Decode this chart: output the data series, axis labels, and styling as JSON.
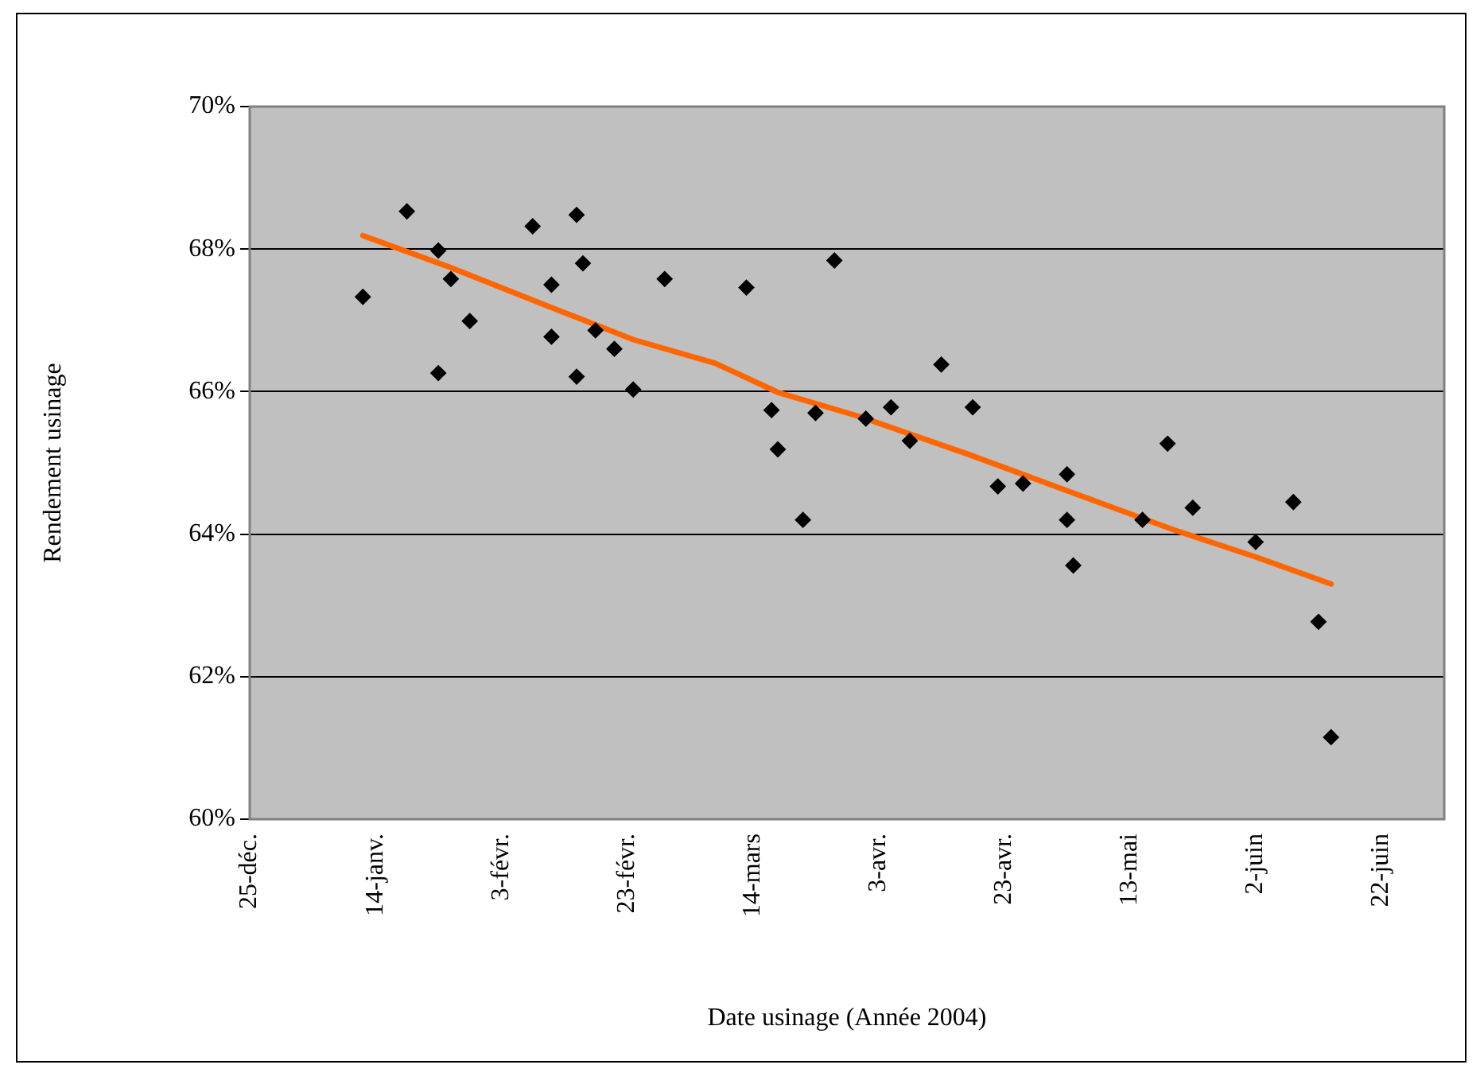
{
  "chart_data": {
    "type": "scatter",
    "xlabel": "Date usinage (Année 2004)",
    "ylabel": "Rendement usinage",
    "xlim": [
      "2003-12-25",
      "2004-07-02"
    ],
    "xticks": [
      {
        "value": "2003-12-25",
        "label": "25-déc."
      },
      {
        "value": "2004-01-14",
        "label": "14-janv."
      },
      {
        "value": "2004-02-03",
        "label": "3-févr."
      },
      {
        "value": "2004-02-23",
        "label": "23-févr."
      },
      {
        "value": "2004-03-14",
        "label": "14-mars"
      },
      {
        "value": "2004-04-03",
        "label": "3-avr."
      },
      {
        "value": "2004-04-23",
        "label": "23-avr."
      },
      {
        "value": "2004-05-13",
        "label": "13-mai"
      },
      {
        "value": "2004-06-02",
        "label": "2-juin"
      },
      {
        "value": "2004-06-22",
        "label": "22-juin"
      }
    ],
    "ylim": [
      60,
      70
    ],
    "yticks": [
      {
        "value": 60,
        "label": "60%"
      },
      {
        "value": 62,
        "label": "62%"
      },
      {
        "value": 64,
        "label": "64%"
      },
      {
        "value": 66,
        "label": "66%"
      },
      {
        "value": 68,
        "label": "68%"
      },
      {
        "value": 70,
        "label": "70%"
      }
    ],
    "grid": "y",
    "legend": false,
    "series": [
      {
        "color": "#000000",
        "marker": "diamond",
        "x": [
          "2004-01-12",
          "2004-01-19",
          "2004-01-24",
          "2004-01-26",
          "2004-01-24",
          "2004-01-29",
          "2004-02-08",
          "2004-02-15",
          "2004-02-11",
          "2004-02-16",
          "2004-02-11",
          "2004-02-15",
          "2004-02-18",
          "2004-02-21",
          "2004-02-24",
          "2004-02-29",
          "2004-03-13",
          "2004-03-27",
          "2004-03-17",
          "2004-03-18",
          "2004-03-22",
          "2004-03-24",
          "2004-04-01",
          "2004-04-05",
          "2004-04-08",
          "2004-04-13",
          "2004-04-18",
          "2004-04-22",
          "2004-04-26",
          "2004-05-03",
          "2004-05-03",
          "2004-05-04",
          "2004-05-15",
          "2004-05-19",
          "2004-05-23",
          "2004-06-02",
          "2004-06-08",
          "2004-06-12",
          "2004-06-14"
        ],
        "values": [
          67.33,
          68.53,
          67.98,
          67.58,
          66.26,
          66.99,
          68.32,
          68.48,
          67.5,
          67.8,
          66.77,
          66.21,
          66.86,
          66.6,
          66.03,
          67.58,
          67.46,
          67.84,
          65.74,
          65.19,
          64.2,
          65.7,
          65.62,
          65.78,
          65.31,
          66.38,
          65.78,
          64.67,
          64.71,
          64.84,
          64.2,
          63.56,
          64.2,
          65.27,
          64.37,
          63.89,
          64.45,
          62.77,
          61.15
        ]
      },
      {
        "type": "line",
        "color": "#ff6600",
        "marker": "none",
        "line_style": "solid",
        "x": [
          "2004-01-12",
          "2004-01-26",
          "2004-02-11",
          "2004-02-24",
          "2004-03-08",
          "2004-03-18",
          "2004-03-31",
          "2004-04-17",
          "2004-05-03",
          "2004-05-20",
          "2004-06-02",
          "2004-06-14"
        ],
        "values": [
          68.19,
          67.74,
          67.18,
          66.73,
          66.4,
          65.99,
          65.65,
          65.13,
          64.61,
          64.06,
          63.68,
          63.3
        ]
      }
    ]
  }
}
